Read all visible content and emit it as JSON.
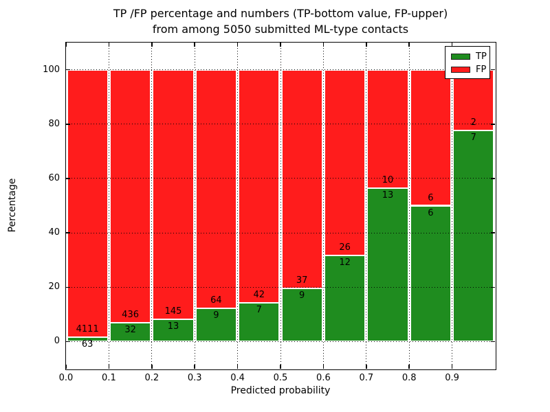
{
  "chart_data": {
    "type": "bar",
    "stacked": true,
    "normalized_to": 100,
    "title_line1": "TP /FP percentage and numbers (TP-bottom value, FP-upper)",
    "title_line2": "from among 5050 submitted ML-type contacts",
    "xlabel": "Predicted probability",
    "ylabel": "Percentage",
    "total_contacts": 5050,
    "bins": [
      {
        "x_start": 0.0,
        "x_end": 0.1,
        "tp": 63,
        "fp": 4111,
        "tp_percent": 1.51
      },
      {
        "x_start": 0.1,
        "x_end": 0.2,
        "tp": 32,
        "fp": 436,
        "tp_percent": 6.84
      },
      {
        "x_start": 0.2,
        "x_end": 0.3,
        "tp": 13,
        "fp": 145,
        "tp_percent": 8.23
      },
      {
        "x_start": 0.3,
        "x_end": 0.4,
        "tp": 9,
        "fp": 64,
        "tp_percent": 12.33
      },
      {
        "x_start": 0.4,
        "x_end": 0.5,
        "tp": 7,
        "fp": 42,
        "tp_percent": 14.29
      },
      {
        "x_start": 0.5,
        "x_end": 0.6,
        "tp": 9,
        "fp": 37,
        "tp_percent": 19.57
      },
      {
        "x_start": 0.6,
        "x_end": 0.7,
        "tp": 12,
        "fp": 26,
        "tp_percent": 31.58
      },
      {
        "x_start": 0.7,
        "x_end": 0.8,
        "tp": 13,
        "fp": 10,
        "tp_percent": 56.52
      },
      {
        "x_start": 0.8,
        "x_end": 0.9,
        "tp": 6,
        "fp": 6,
        "tp_percent": 50.0
      },
      {
        "x_start": 0.9,
        "x_end": 1.0,
        "tp": 7,
        "fp": 2,
        "tp_percent": 77.78
      }
    ],
    "x_ticks": [
      "0.0",
      "0.1",
      "0.2",
      "0.3",
      "0.4",
      "0.5",
      "0.6",
      "0.7",
      "0.8",
      "0.9"
    ],
    "y_ticks": [
      "0",
      "20",
      "40",
      "60",
      "80",
      "100"
    ],
    "xlim": [
      0.0,
      1.0
    ],
    "ylim": [
      -10,
      110
    ],
    "grid": "dotted black, horizontal at y ticks and vertical at x ticks, drawn above bars",
    "legend": [
      {
        "label": "TP",
        "color": "#1f8c1f"
      },
      {
        "label": "FP",
        "color": "#ff1c1c"
      }
    ],
    "legend_position": "upper right",
    "colors": {
      "tp": "#1f8c1f",
      "fp": "#ff1c1c",
      "background": "#ffffff",
      "text": "#000000"
    }
  }
}
